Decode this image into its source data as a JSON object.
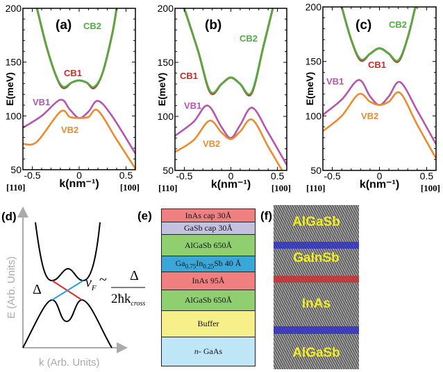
{
  "colors": {
    "CB1": "#cc2a2a",
    "CB2": "#4caf3f",
    "VB1": "#b455b0",
    "VB2": "#ee8a2c"
  },
  "chart_data": [
    {
      "type": "line",
      "panel_label": "(a)",
      "xlabel": "k(nm⁻¹)",
      "ylabel": "E(meV)",
      "xlim": [
        -0.6,
        0.6
      ],
      "ylim": [
        50,
        200
      ],
      "xticks": [
        "-0.5",
        "0",
        "0.5"
      ],
      "yticks": [
        "50",
        "100",
        "150",
        "200"
      ],
      "x_dir_left": "[110]",
      "x_dir_right": "[100]",
      "series": [
        {
          "name": "CB1",
          "x": [
            -0.45,
            -0.35,
            -0.25,
            -0.17,
            -0.08,
            0,
            0.08,
            0.16,
            0.25,
            0.35,
            0.4
          ],
          "y": [
            200,
            165,
            138,
            126,
            131,
            133,
            131,
            126,
            140,
            175,
            200
          ]
        },
        {
          "name": "CB2",
          "x": [
            -0.45,
            -0.35,
            -0.25,
            -0.17,
            -0.08,
            0,
            0.08,
            0.16,
            0.25,
            0.35,
            0.4
          ],
          "y": [
            200,
            165,
            138,
            127,
            131,
            133,
            131,
            127,
            140,
            175,
            200
          ]
        },
        {
          "name": "VB1",
          "x": [
            -0.6,
            -0.4,
            -0.2,
            -0.1,
            0,
            0.1,
            0.2,
            0.35,
            0.6
          ],
          "y": [
            89,
            100,
            115,
            106,
            98,
            104,
            114,
            100,
            65
          ]
        },
        {
          "name": "VB2",
          "x": [
            -0.6,
            -0.45,
            -0.2,
            -0.1,
            0,
            0.1,
            0.2,
            0.4,
            0.6
          ],
          "y": [
            74,
            76,
            104,
            99,
            98,
            99,
            105,
            78,
            51
          ]
        }
      ]
    },
    {
      "type": "line",
      "panel_label": "(b)",
      "xlabel": "k(nm⁻¹)",
      "ylabel": "E(meV)",
      "xlim": [
        -0.6,
        0.6
      ],
      "ylim": [
        50,
        200
      ],
      "xticks": [
        "-0.5",
        "0",
        "0.5"
      ],
      "yticks": [
        "50",
        "100",
        "150",
        "200"
      ],
      "x_dir_left": "[110]",
      "x_dir_right": "[100]",
      "series": [
        {
          "name": "CB1",
          "x": [
            -0.5,
            -0.35,
            -0.22,
            -0.1,
            0,
            0.1,
            0.22,
            0.35,
            0.45
          ],
          "y": [
            200,
            160,
            122,
            130,
            136,
            130,
            121,
            165,
            200
          ]
        },
        {
          "name": "CB2",
          "x": [
            -0.5,
            -0.35,
            -0.22,
            -0.1,
            0,
            0.1,
            0.22,
            0.35,
            0.45
          ],
          "y": [
            200,
            160,
            123,
            130,
            136,
            130,
            122,
            165,
            200
          ]
        },
        {
          "name": "VB1",
          "x": [
            -0.6,
            -0.4,
            -0.25,
            -0.1,
            0,
            0.1,
            0.23,
            0.4,
            0.6
          ],
          "y": [
            82,
            95,
            110,
            90,
            80,
            92,
            108,
            85,
            55
          ]
        },
        {
          "name": "VB2",
          "x": [
            -0.6,
            -0.4,
            -0.23,
            -0.1,
            0,
            0.1,
            0.23,
            0.4,
            0.55
          ],
          "y": [
            67,
            78,
            96,
            85,
            79,
            86,
            97,
            72,
            50
          ]
        }
      ]
    },
    {
      "type": "line",
      "panel_label": "(c)",
      "xlabel": "k(nm⁻¹)",
      "ylabel": "E(meV)",
      "xlim": [
        -0.6,
        0.6
      ],
      "ylim": [
        50,
        200
      ],
      "xticks": [
        "-0.5",
        "0",
        "0.5"
      ],
      "yticks": [
        "50",
        "100",
        "150",
        "200"
      ],
      "x_dir_left": "[110]",
      "x_dir_right": "[100]",
      "series": [
        {
          "name": "CB1",
          "x": [
            -0.4,
            -0.3,
            -0.2,
            -0.1,
            0,
            0.1,
            0.2,
            0.3,
            0.38
          ],
          "y": [
            200,
            170,
            151,
            157,
            162,
            157,
            150,
            172,
            200
          ]
        },
        {
          "name": "CB2",
          "x": [
            -0.4,
            -0.3,
            -0.2,
            -0.1,
            0,
            0.1,
            0.2,
            0.3,
            0.38
          ],
          "y": [
            200,
            170,
            152,
            157,
            162,
            157,
            151,
            172,
            200
          ]
        },
        {
          "name": "VB1",
          "x": [
            -0.6,
            -0.4,
            -0.22,
            -0.1,
            0,
            0.1,
            0.22,
            0.4,
            0.6
          ],
          "y": [
            101,
            115,
            133,
            118,
            110,
            118,
            131,
            105,
            74
          ]
        },
        {
          "name": "VB2",
          "x": [
            -0.6,
            -0.4,
            -0.22,
            -0.1,
            0,
            0.1,
            0.22,
            0.4,
            0.6
          ],
          "y": [
            86,
            100,
            120,
            113,
            110,
            113,
            121,
            92,
            61
          ]
        }
      ]
    }
  ],
  "panel_d": {
    "label": "(d)",
    "ylabel": "E (Arb. Units)",
    "xlabel": "k (Arb. Units)",
    "gap_symbol": "Δ",
    "formula_lhs": "v",
    "formula_sub": "F",
    "formula_sim": "~",
    "formula_num": "Δ",
    "formula_den": "2ħk",
    "formula_den_sub": "cross"
  },
  "panel_e": {
    "label": "(e)",
    "layers": [
      {
        "text": "InAs cap 30Å",
        "color": "#f08080"
      },
      {
        "text": "GaSb cap 30Å",
        "color": "#c4c0e0"
      },
      {
        "text": "AlGaSb 650Å",
        "color": "#8fcf6f"
      },
      {
        "text": "Ga0.75In0.25Sb 40 Å",
        "color": "#3aa7d8",
        "rich": [
          "Ga",
          "0.75",
          "In",
          "0.25",
          "Sb 40 Å"
        ]
      },
      {
        "text": "InAs 95Å",
        "color": "#f08080"
      },
      {
        "text": "AlGaSb 650Å",
        "color": "#8fcf6f"
      },
      {
        "text": "Buffer",
        "color": "#f7ef8a"
      },
      {
        "text": "n- GaAs",
        "color": "#bfe6f7",
        "rich": [
          "n",
          "- GaAs"
        ]
      }
    ]
  },
  "panel_f": {
    "label": "(f)",
    "labels": [
      "AlGaSb",
      "GaInSb",
      "InAs",
      "AlGaSb"
    ],
    "band_colors": [
      "#2a2ad0",
      "#d42a2a",
      "#2a2ad0"
    ]
  }
}
